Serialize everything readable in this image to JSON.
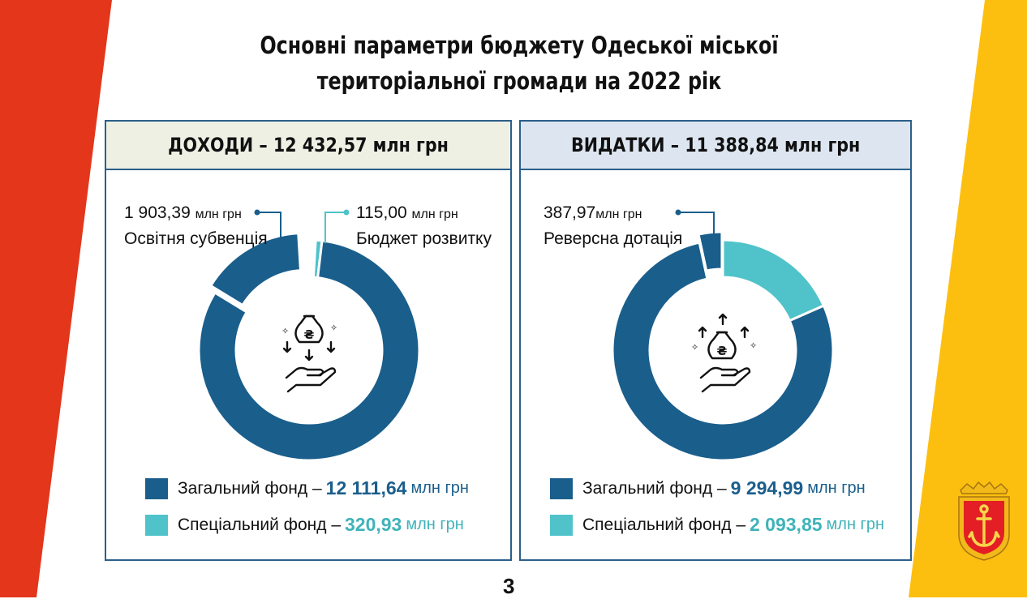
{
  "title_line1": "Основні параметри бюджету Одеської міської",
  "title_line2": "територіальної громади на 2022 рік",
  "page_number": "3",
  "colors": {
    "primary": "#1a5e8c",
    "secondary": "#4fc3c9",
    "red": "#e3361b",
    "yellow": "#fdbf0f"
  },
  "icons": {
    "income": "money-bag-hand-down-icon",
    "expense": "money-bag-hand-up-icon",
    "emblem": "odesa-coat-of-arms-icon"
  },
  "income": {
    "header": "ДОХОДИ – 12 432,57 млн грн",
    "callout_left_value": "1 903,39",
    "callout_left_unit": "млн грн",
    "callout_left_label": "Освітня субвенція",
    "callout_right_value": "115,00",
    "callout_right_unit": "млн грн",
    "callout_right_label": "Бюджет розвитку",
    "legend": [
      {
        "label": "Загальний фонд –",
        "value": "12 111,64",
        "unit": "млн грн"
      },
      {
        "label": "Спеціальний фонд –",
        "value": "320,93",
        "unit": "млн грн"
      }
    ]
  },
  "expense": {
    "header": "ВИДАТКИ – 11 388,84 млн грн",
    "callout_value": "387,97",
    "callout_unit": "млн грн",
    "callout_label": "Реверсна дотація",
    "legend": [
      {
        "label": "Загальний фонд –",
        "value": "9 294,99",
        "unit": "млн грн"
      },
      {
        "label": "Спеціальний фонд –",
        "value": "2 093,85",
        "unit": "млн грн"
      }
    ]
  },
  "chart_data": [
    {
      "type": "pie",
      "title": "ДОХОДИ – 12 432,57 млн грн",
      "series": [
        {
          "name": "Загальний фонд",
          "value": 12111.64
        },
        {
          "name": "Спеціальний фонд",
          "value": 320.93
        }
      ],
      "highlighted": [
        {
          "name": "Освітня субвенція",
          "value": 1903.39
        },
        {
          "name": "Бюджет розвитку",
          "value": 115.0
        }
      ]
    },
    {
      "type": "pie",
      "title": "ВИДАТКИ – 11 388,84 млн грн",
      "series": [
        {
          "name": "Загальний фонд",
          "value": 9294.99
        },
        {
          "name": "Спеціальний фонд",
          "value": 2093.85
        }
      ],
      "highlighted": [
        {
          "name": "Реверсна дотація",
          "value": 387.97
        }
      ]
    }
  ]
}
